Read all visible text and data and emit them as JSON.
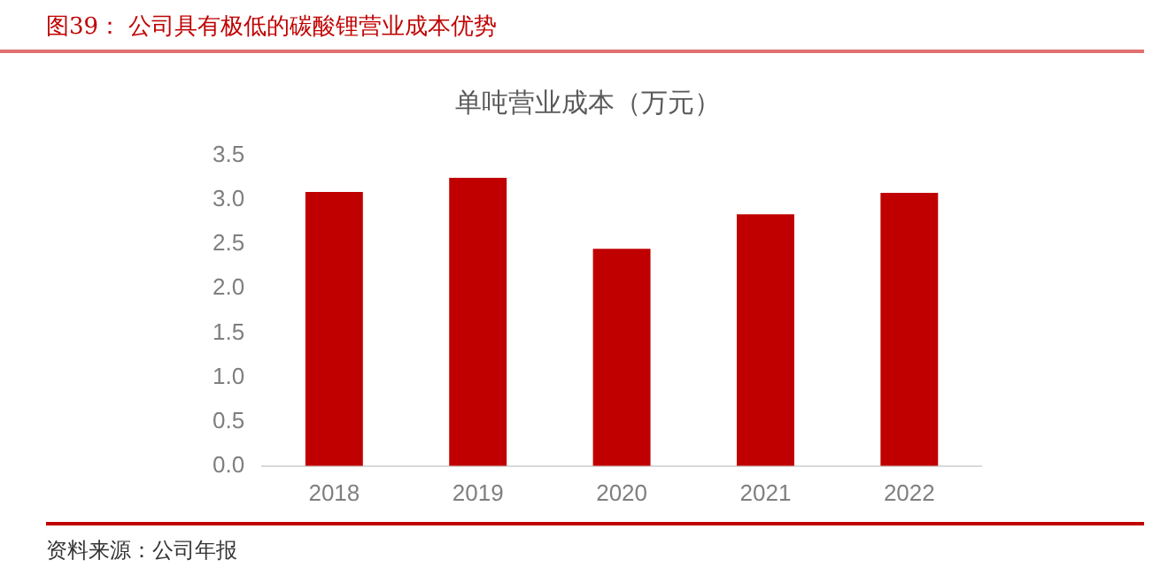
{
  "chart_data": {
    "type": "bar",
    "title": "单吨营业成本（万元）",
    "annotations": [
      "图39：  公司具有极低的碳酸锂营业成本优势",
      "资料来源：公司年报"
    ],
    "categories": [
      "2018",
      "2019",
      "2020",
      "2021",
      "2022"
    ],
    "values": [
      3.09,
      3.25,
      2.45,
      2.84,
      3.08
    ],
    "color": "#c00000",
    "ylim": [
      0,
      3.5
    ],
    "yticks": [
      {
        "value": 0,
        "label": "0.0"
      },
      {
        "value": 0.5,
        "label": "0.5"
      },
      {
        "value": 1,
        "label": "1.0"
      },
      {
        "value": 1.5,
        "label": "1.5"
      },
      {
        "value": 2,
        "label": "2.0"
      },
      {
        "value": 2.5,
        "label": "2.5"
      },
      {
        "value": 3,
        "label": "3.0"
      },
      {
        "value": 3.5,
        "label": "3.5"
      }
    ],
    "grid": false,
    "legend": false
  }
}
